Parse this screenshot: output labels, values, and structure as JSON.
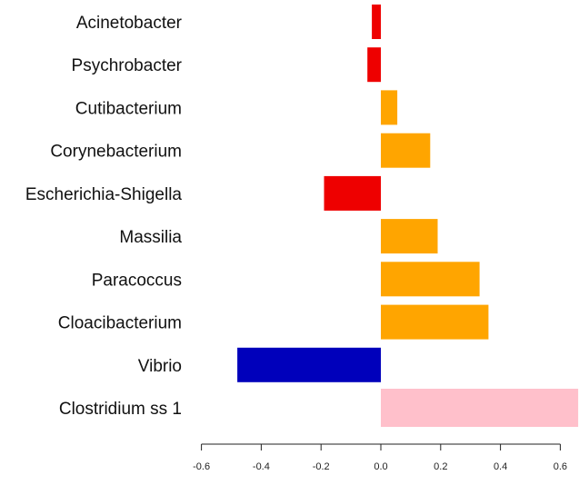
{
  "chart_data": {
    "type": "bar",
    "orientation": "horizontal",
    "title": "",
    "xlabel": "",
    "ylabel": "",
    "categories": [
      "Acinetobacter",
      "Psychrobacter",
      "Cutibacterium",
      "Corynebacterium",
      "Escherichia-Shigella",
      "Massilia",
      "Paracoccus",
      "Cloacibacterium",
      "Vibrio",
      "Clostridium ss 1"
    ],
    "values": [
      -0.03,
      -0.045,
      0.055,
      0.165,
      -0.19,
      0.19,
      0.33,
      0.36,
      -0.48,
      0.66
    ],
    "bar_colors": [
      "#ee0000",
      "#ee0000",
      "#ffa500",
      "#ffa500",
      "#ee0000",
      "#ffa500",
      "#ffa500",
      "#ffa500",
      "#0000bb",
      "#ffc0cb"
    ],
    "xlim": [
      -0.6,
      0.66
    ],
    "xticks": [
      -0.6,
      -0.4,
      -0.2,
      0.0,
      0.2,
      0.4,
      0.6
    ],
    "xtick_labels": [
      "-0.6",
      "-0.4",
      "-0.2",
      "0.0",
      "0.2",
      "0.4",
      "0.6"
    ],
    "grid": false,
    "legend": "none"
  }
}
